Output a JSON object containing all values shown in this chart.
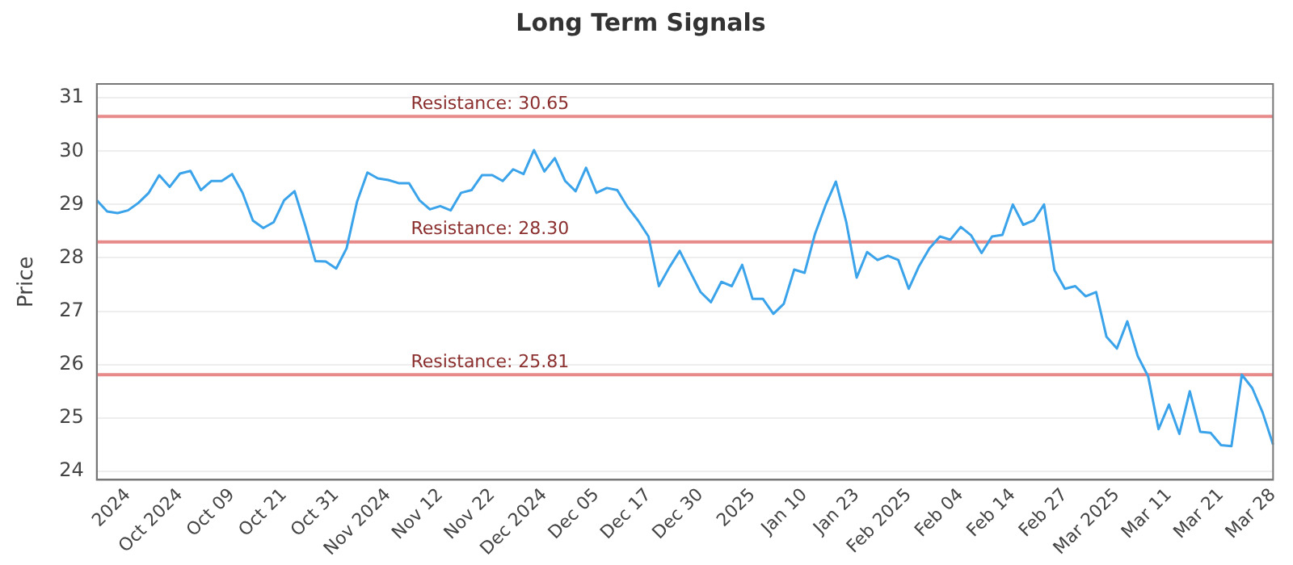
{
  "chart_data": {
    "type": "line",
    "title": "Long Term Signals",
    "ylabel": "Price",
    "categories": [
      null,
      null,
      null,
      "2024",
      null,
      null,
      null,
      null,
      "Oct 2024",
      null,
      null,
      null,
      null,
      "Oct 09",
      null,
      null,
      null,
      null,
      "Oct 21",
      null,
      null,
      null,
      null,
      "Oct 31",
      null,
      null,
      null,
      null,
      "Nov 2024",
      null,
      null,
      null,
      null,
      "Nov 12",
      null,
      null,
      null,
      null,
      "Nov 22",
      null,
      null,
      null,
      null,
      "Dec 2024",
      null,
      null,
      null,
      null,
      "Dec 05",
      null,
      null,
      null,
      null,
      "Dec 17",
      null,
      null,
      null,
      null,
      "Dec 30",
      null,
      null,
      null,
      null,
      "2025",
      null,
      null,
      null,
      null,
      "Jan 10",
      null,
      null,
      null,
      null,
      "Jan 23",
      null,
      null,
      null,
      null,
      "Feb 2025",
      null,
      null,
      null,
      null,
      "Feb 04",
      null,
      null,
      null,
      null,
      "Feb 14",
      null,
      null,
      null,
      null,
      "Feb 27",
      null,
      null,
      null,
      null,
      "Mar 2025",
      null,
      null,
      null,
      null,
      "Mar 11",
      null,
      null,
      null,
      null,
      "Mar 21",
      null,
      null,
      null,
      null,
      "Mar 28"
    ],
    "series": [
      {
        "color": "#3ba3ea",
        "values": [
          29.08,
          28.87,
          28.84,
          28.89,
          29.03,
          29.22,
          29.55,
          29.33,
          29.58,
          29.63,
          29.27,
          29.44,
          29.44,
          29.57,
          29.22,
          28.7,
          28.56,
          28.67,
          29.08,
          29.25,
          28.62,
          27.94,
          27.93,
          27.8,
          28.18,
          29.05,
          29.6,
          29.49,
          29.46,
          29.4,
          29.4,
          29.08,
          28.91,
          28.97,
          28.89,
          29.22,
          29.27,
          29.55,
          29.55,
          29.44,
          29.66,
          29.57,
          30.02,
          29.62,
          29.87,
          29.44,
          29.25,
          29.69,
          29.22,
          29.31,
          29.27,
          28.95,
          28.7,
          28.4,
          27.47,
          27.82,
          28.13,
          27.74,
          27.36,
          27.17,
          27.55,
          27.47,
          27.87,
          27.23,
          27.23,
          26.95,
          27.14,
          27.78,
          27.72,
          28.45,
          28.98,
          29.43,
          28.67,
          27.63,
          28.11,
          27.96,
          28.04,
          27.96,
          27.42,
          27.85,
          28.18,
          28.4,
          28.34,
          28.58,
          28.42,
          28.09,
          28.4,
          28.43,
          29.0,
          28.62,
          28.7,
          29.0,
          27.77,
          27.42,
          27.47,
          27.28,
          27.36,
          26.52,
          26.3,
          26.81,
          26.16,
          25.78,
          24.79,
          25.25,
          24.7,
          25.5,
          24.74,
          24.72,
          24.49,
          24.47,
          25.81,
          25.56,
          25.1,
          24.5
        ]
      }
    ],
    "ylim": [
      23.84,
      31.26
    ],
    "yticks": [
      24,
      25,
      26,
      27,
      28,
      29,
      30,
      31
    ],
    "grid": "y",
    "legend": false,
    "marker": "none",
    "line_style": "solid",
    "ref_lines": [
      {
        "axis": "y",
        "value": 30.65,
        "label": "Resistance: 30.65",
        "color": "#e88a8a"
      },
      {
        "axis": "y",
        "value": 28.3,
        "label": "Resistance: 28.30",
        "color": "#e88a8a"
      },
      {
        "axis": "y",
        "value": 25.81,
        "label": "Resistance: 25.81",
        "color": "#e88a8a"
      }
    ]
  }
}
